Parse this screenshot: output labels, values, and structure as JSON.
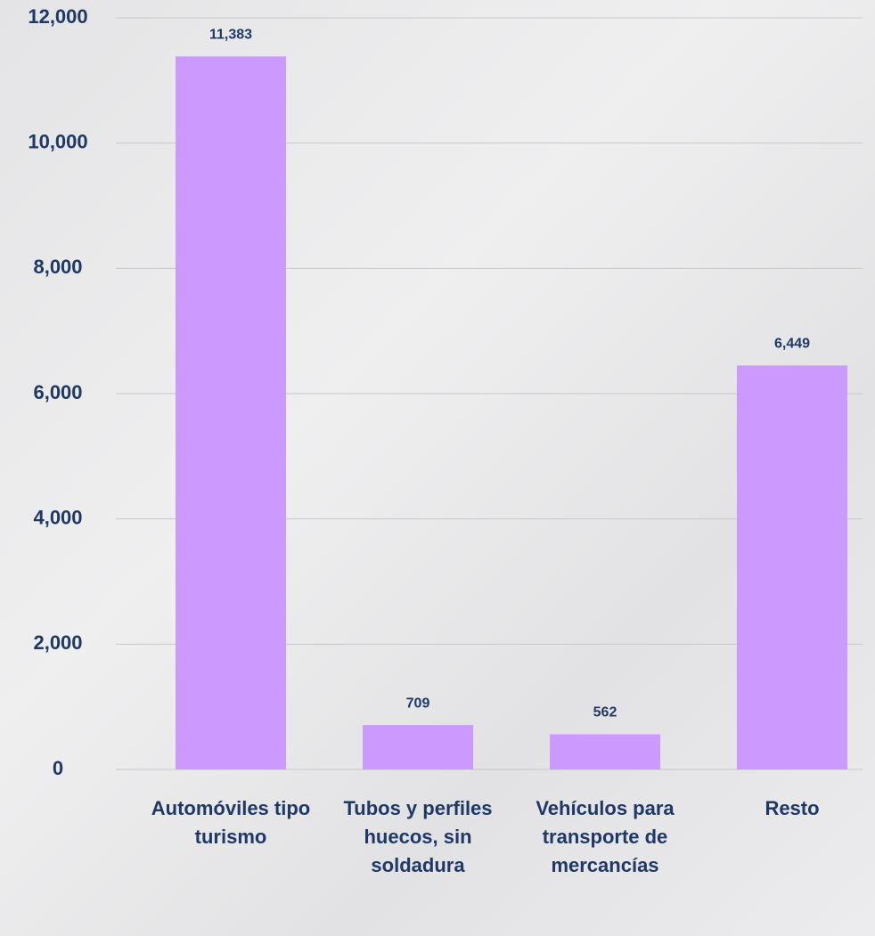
{
  "chart_data": {
    "type": "bar",
    "categories": [
      "Automóviles tipo turismo",
      "Tubos y perfiles huecos, sin soldadura",
      "Vehículos para transporte de mercancías",
      "Resto"
    ],
    "values": [
      11383,
      709,
      562,
      6449
    ],
    "value_labels": [
      "11,383",
      "709",
      "562",
      "6,449"
    ],
    "color": "#cc99ff",
    "ylim": [
      0,
      12000
    ],
    "yticks": [
      0,
      {
        "value": 2000,
        "label": "2,000"
      },
      {
        "value": 4000,
        "label": "4,000"
      },
      {
        "value": 6000,
        "label": "6,000"
      },
      {
        "value": 8000,
        "label": "8,000"
      },
      {
        "value": 10000,
        "label": "10,000"
      },
      {
        "value": 12000,
        "label": "12,000"
      }
    ],
    "grid": true
  }
}
